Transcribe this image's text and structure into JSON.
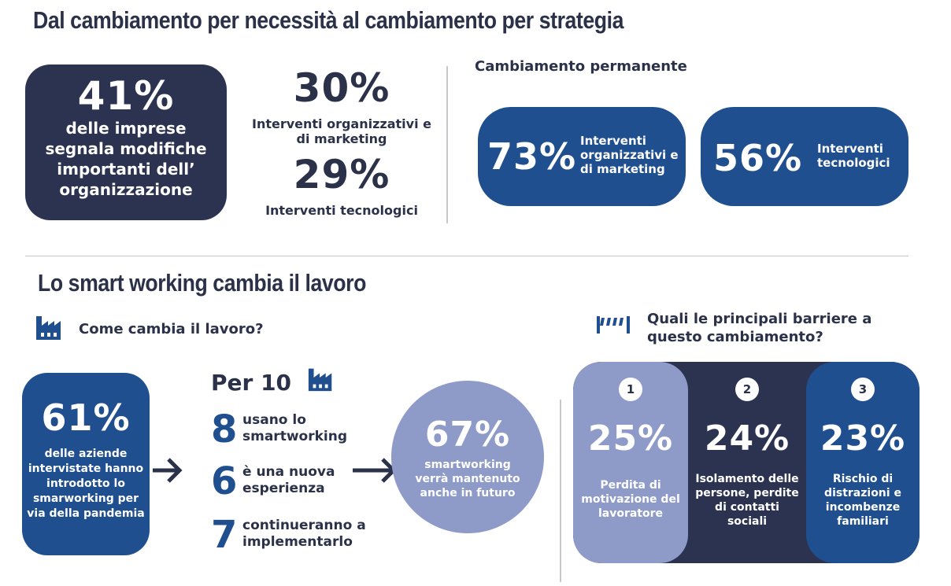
{
  "section1": {
    "title": "Dal cambiamento per necessità al cambiamento per strategia",
    "stat_main": {
      "value": "41%",
      "text": "delle imprese segnala modifiche importanti dell’ organizzazione"
    },
    "stat_a": {
      "value": "30%",
      "text": "Interventi organizzativi e di marketing"
    },
    "stat_b": {
      "value": "29%",
      "text": "Interventi tecnologici"
    },
    "permanent": {
      "title": "Cambiamento permanente",
      "items": [
        {
          "value": "73%",
          "text": "Interventi organizzativi e di marketing"
        },
        {
          "value": "56%",
          "text": "Interventi tecnologici"
        }
      ]
    }
  },
  "section2": {
    "title": "Lo smart working cambia il lavoro",
    "how_title": "Come cambia il lavoro?",
    "stat_61": {
      "value": "61%",
      "text": "delle aziende intervistate hanno introdotto lo smarworking per via della pandemia"
    },
    "per10": {
      "title": "Per 10",
      "items": [
        {
          "num": "8",
          "text": "usano lo smartworking"
        },
        {
          "num": "6",
          "text": "è una nuova esperienza"
        },
        {
          "num": "7",
          "text": "continueranno a implementarlo"
        }
      ]
    },
    "stat_67": {
      "value": "67%",
      "text": "smartworking verrà mantenuto anche in futuro"
    },
    "barriers": {
      "title": "Quali le principali barriere a questo cambiamento?",
      "items": [
        {
          "rank": "1",
          "value": "25%",
          "text": "Perdita di motivazione del lavoratore",
          "color": "#8e9bc9"
        },
        {
          "rank": "2",
          "value": "24%",
          "text": "Isolamento delle persone, perdite di contatti sociali",
          "color": "#2b3350"
        },
        {
          "rank": "3",
          "value": "23%",
          "text": "Rischio di distrazioni e incombenze familiari",
          "color": "#1f4f8f"
        }
      ]
    }
  },
  "colors": {
    "navy": "#2b3350",
    "blue": "#1f4f8f",
    "periwinkle": "#8e9bc9"
  },
  "icons": [
    "factory-icon",
    "factory-icon",
    "arrow-right-icon",
    "arrow-right-icon",
    "arrow-right-icon",
    "barrier-icon"
  ]
}
